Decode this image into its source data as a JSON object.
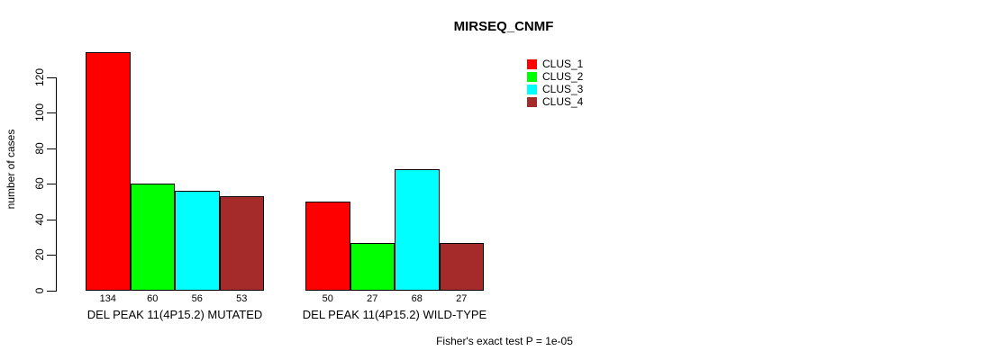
{
  "chart_data": {
    "type": "bar",
    "title": "MIRSEQ_CNMF",
    "ylabel": "number of cases",
    "xlabel": "",
    "ylim": [
      0,
      134
    ],
    "yticks": [
      0,
      20,
      40,
      60,
      80,
      100,
      120
    ],
    "grid": false,
    "legend_position": "top-right",
    "categories": [
      "DEL PEAK 11(4P15.2) MUTATED",
      "DEL PEAK 11(4P15.2) WILD-TYPE"
    ],
    "series": [
      {
        "name": "CLUS_1",
        "color": "#FF0000",
        "values": [
          134,
          50
        ]
      },
      {
        "name": "CLUS_2",
        "color": "#00FF00",
        "values": [
          60,
          27
        ]
      },
      {
        "name": "CLUS_3",
        "color": "#00FFFF",
        "values": [
          56,
          68
        ]
      },
      {
        "name": "CLUS_4",
        "color": "#A52A2A",
        "values": [
          53,
          27
        ]
      }
    ],
    "bar_value_labels": [
      [
        134,
        60,
        56,
        53
      ],
      [
        50,
        27,
        68,
        27
      ]
    ],
    "annotation": "Fisher's exact test P = 1e-05"
  }
}
